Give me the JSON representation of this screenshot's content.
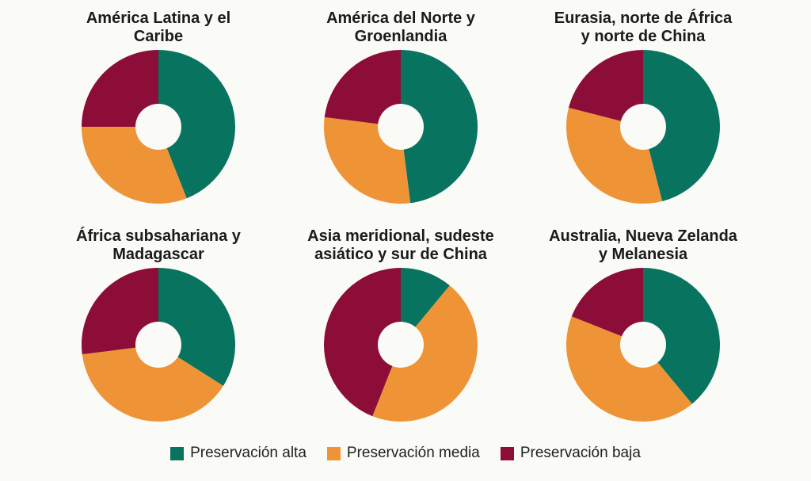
{
  "colors": {
    "alta": "#08735f",
    "media": "#ee9437",
    "baja": "#8b0d38",
    "background": "#fafaf7"
  },
  "legend": [
    {
      "label": "Preservación alta",
      "color": "#08735f"
    },
    {
      "label": "Preservación media",
      "color": "#ee9437"
    },
    {
      "label": "Preservación baja",
      "color": "#8b0d38"
    }
  ],
  "chart_data": [
    {
      "type": "pie",
      "title": "América Latina y el\nCaribe",
      "series": [
        {
          "name": "Preservación alta",
          "value": 44
        },
        {
          "name": "Preservación media",
          "value": 31
        },
        {
          "name": "Preservación baja",
          "value": 25
        }
      ]
    },
    {
      "type": "pie",
      "title": "América del Norte y\nGroenlandia",
      "series": [
        {
          "name": "Preservación alta",
          "value": 48
        },
        {
          "name": "Preservación media",
          "value": 29
        },
        {
          "name": "Preservación baja",
          "value": 23
        }
      ]
    },
    {
      "type": "pie",
      "title": "Eurasia, norte de África\ny norte de China",
      "series": [
        {
          "name": "Preservación alta",
          "value": 46
        },
        {
          "name": "Preservación media",
          "value": 33
        },
        {
          "name": "Preservación baja",
          "value": 21
        }
      ]
    },
    {
      "type": "pie",
      "title": "África subsahariana y\nMadagascar",
      "series": [
        {
          "name": "Preservación alta",
          "value": 34
        },
        {
          "name": "Preservación media",
          "value": 39
        },
        {
          "name": "Preservación baja",
          "value": 27
        }
      ]
    },
    {
      "type": "pie",
      "title": "Asia meridional, sudeste\nasiático y sur de China",
      "series": [
        {
          "name": "Preservación alta",
          "value": 11
        },
        {
          "name": "Preservación media",
          "value": 45
        },
        {
          "name": "Preservación baja",
          "value": 44
        }
      ]
    },
    {
      "type": "pie",
      "title": "Australia, Nueva Zelanda\ny Melanesia",
      "series": [
        {
          "name": "Preservación alta",
          "value": 39
        },
        {
          "name": "Preservación media",
          "value": 42
        },
        {
          "name": "Preservación baja",
          "value": 19
        }
      ]
    }
  ]
}
